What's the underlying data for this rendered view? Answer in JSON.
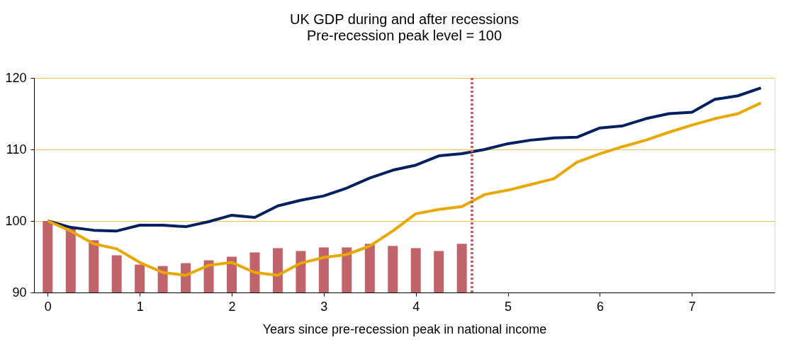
{
  "chart_data": {
    "type": "line",
    "title": "UK GDP during and after recessions",
    "subtitle": "Pre-recession peak level = 100",
    "xlabel": "Years since pre-recession peak in national income",
    "series": [
      {
        "type": "bar",
        "color": "#c0646a",
        "x": [
          0,
          0.25,
          0.5,
          0.75,
          1,
          1.25,
          1.5,
          1.75,
          2,
          2.25,
          2.5,
          2.75,
          3,
          3.25,
          3.5,
          3.75,
          4,
          4.25,
          4.5
        ],
        "values": [
          100,
          98.9,
          97.3,
          95.2,
          93.9,
          93.7,
          94.1,
          94.5,
          95.0,
          95.6,
          96.2,
          95.8,
          96.3,
          96.3,
          96.8,
          96.5,
          96.2,
          95.8,
          96.8
        ]
      },
      {
        "color": "#002060",
        "x": [
          0,
          0.25,
          0.5,
          0.75,
          1,
          1.25,
          1.5,
          1.75,
          2,
          2.25,
          2.5,
          2.75,
          3,
          3.25,
          3.5,
          3.75,
          4,
          4.25,
          4.5,
          4.75,
          5,
          5.25,
          5.5,
          5.75,
          6,
          6.25,
          6.5,
          6.75,
          7,
          7.25,
          7.5,
          7.75
        ],
        "values": [
          100,
          99.1,
          98.7,
          98.6,
          99.4,
          99.4,
          99.2,
          99.9,
          100.8,
          100.5,
          102.1,
          102.9,
          103.5,
          104.6,
          106.0,
          107.1,
          107.8,
          109.1,
          109.4,
          110.0,
          110.8,
          111.3,
          111.6,
          111.7,
          113.0,
          113.3,
          114.3,
          115.0,
          115.2,
          117.0,
          117.5,
          118.6
        ]
      },
      {
        "color": "#e8a800",
        "x": [
          0,
          0.25,
          0.5,
          0.75,
          1,
          1.25,
          1.5,
          1.75,
          2,
          2.25,
          2.5,
          2.75,
          3,
          3.25,
          3.5,
          3.75,
          4,
          4.25,
          4.5,
          4.75,
          5,
          5.25,
          5.5,
          5.75,
          6,
          6.25,
          6.5,
          6.75,
          7,
          7.25,
          7.5,
          7.75
        ],
        "values": [
          100,
          98.6,
          96.8,
          96.1,
          94.2,
          92.8,
          92.4,
          93.8,
          94.2,
          92.8,
          92.4,
          94.1,
          94.9,
          95.3,
          96.5,
          98.6,
          101.0,
          101.6,
          102.0,
          103.7,
          104.3,
          105.1,
          105.9,
          108.2,
          109.4,
          110.4,
          111.3,
          112.4,
          113.4,
          114.3,
          115.0,
          116.5
        ]
      }
    ],
    "xlim": [
      -0.11,
      7.86
    ],
    "xticks": [
      0,
      1,
      2,
      3,
      4,
      5,
      6,
      7
    ],
    "ylim": [
      90,
      120
    ],
    "yticks": [
      90,
      100,
      110,
      120
    ],
    "grid": "y",
    "ref_lines": [
      {
        "axis": "x",
        "value": 4.61,
        "color": "#c0646a",
        "line_style": "dotted"
      }
    ]
  }
}
